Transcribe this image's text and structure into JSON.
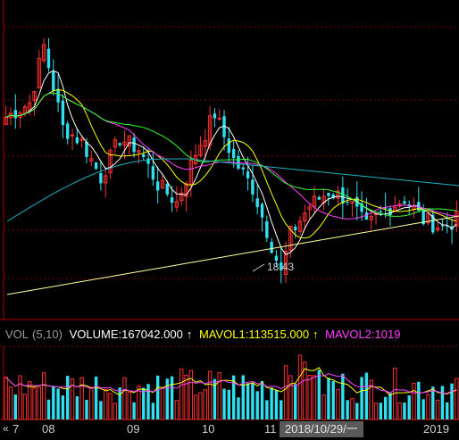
{
  "chart_data": {
    "type": "candlestick",
    "price_panel": {
      "min_annotation": "18.43",
      "y_range": [
        17.5,
        26.5
      ]
    },
    "volume_panel": {
      "indicator": "VOL",
      "params": "(5,10)",
      "volume_label": "VOLUME:167042.000",
      "mavol1_label": "MAVOL1:113515.000",
      "mavol2_label": "MAVOL2:1019"
    },
    "x_axis": {
      "nav_symbol": "«",
      "ticks": [
        "7",
        "08",
        "09",
        "10",
        "11",
        "2019"
      ],
      "cursor_date": "2018/10/29/一"
    },
    "colors": {
      "up": "#ff3030",
      "down": "#30e0f0",
      "ma1": "#ffffff",
      "ma2": "#ffff00",
      "ma3": "#ff40ff",
      "ma4": "#30ff30",
      "ma5": "#20b0c0",
      "ma6": "#ffffa0",
      "grid": "#7a0000",
      "axis": "#b00000"
    }
  }
}
